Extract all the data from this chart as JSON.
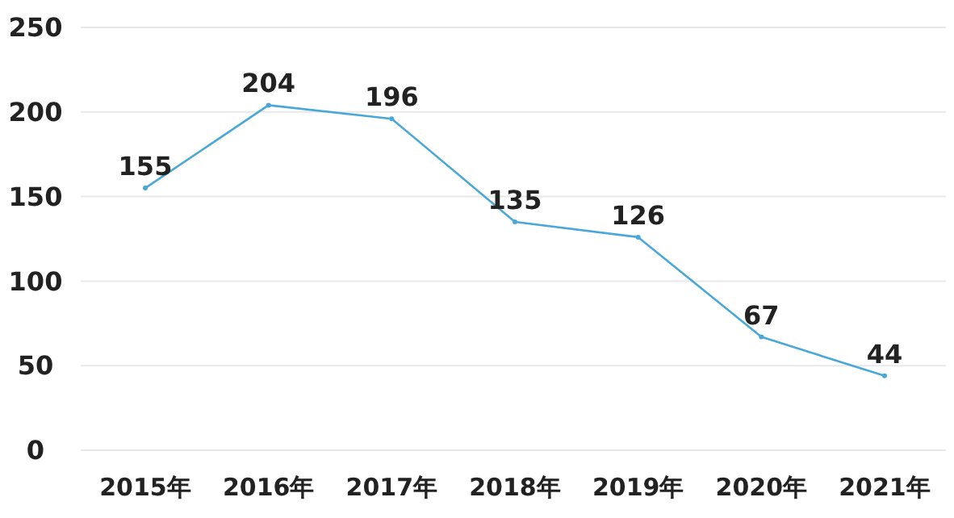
{
  "chart_data": {
    "type": "line",
    "categories": [
      "2015年",
      "2016年",
      "2017年",
      "2018年",
      "2019年",
      "2020年",
      "2021年"
    ],
    "series": [
      {
        "color": "#4aa8d8",
        "values": [
          155,
          204,
          196,
          135,
          126,
          67,
          44
        ]
      }
    ],
    "ylim": [
      0,
      250
    ],
    "yticks": [
      0,
      50,
      100,
      150,
      200,
      250
    ],
    "grid": "y",
    "data_labels": true,
    "marker": "circle",
    "line_style": "solid"
  }
}
